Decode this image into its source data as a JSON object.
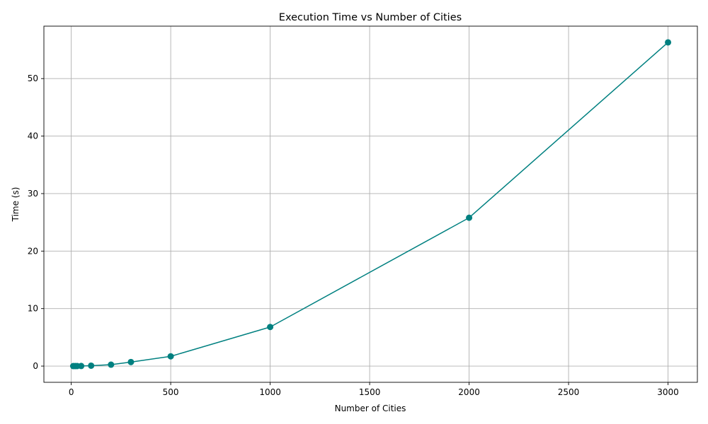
{
  "chart_data": {
    "type": "line",
    "title": "Execution Time vs Number of Cities",
    "xlabel": "Number of Cities",
    "ylabel": "Time (s)",
    "x": [
      10,
      20,
      30,
      50,
      100,
      200,
      300,
      500,
      1000,
      2000,
      3000
    ],
    "series": [
      {
        "values": [
          0.0,
          0.0,
          0.01,
          0.02,
          0.07,
          0.25,
          0.7,
          1.7,
          6.8,
          25.8,
          56.3
        ]
      }
    ],
    "xlim": [
      -137.5,
      3147.5
    ],
    "ylim": [
      -2.82,
      59.12
    ],
    "x_ticks": [
      0,
      500,
      1000,
      1500,
      2000,
      2500,
      3000
    ],
    "y_ticks": [
      0,
      10,
      20,
      30,
      40,
      50
    ],
    "grid": true,
    "legend": "none",
    "line_color": "#008080",
    "marker": "circle"
  }
}
